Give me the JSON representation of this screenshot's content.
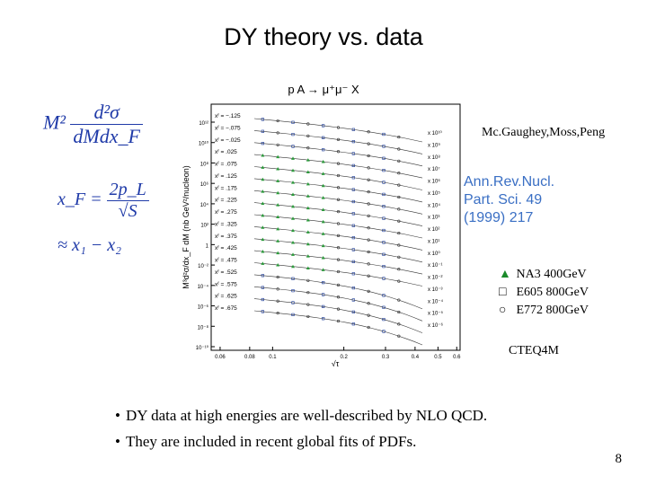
{
  "slide": {
    "title": "DY theory vs. data",
    "page_number": "8"
  },
  "equations": {
    "cross_section": {
      "prefix": "M²",
      "numerator": "d²σ",
      "denominator": "dMdx_F"
    },
    "xf": {
      "lhs": "x_F =",
      "numerator": "2p_L",
      "denominator": "√S"
    },
    "approx": "≈ x₁ − x₂"
  },
  "references": {
    "authors": "Mc.Gaughey,Moss,Peng",
    "journal_lines": [
      "Ann.Rev.Nucl.",
      "Part. Sci. 49",
      "(1999) 217"
    ]
  },
  "legend": {
    "entries": [
      {
        "symbol": "▲",
        "label": "NA3  400GeV",
        "color": "#1a8a2a"
      },
      {
        "symbol": "□",
        "label": "E605 800GeV",
        "color": "#000000"
      },
      {
        "symbol": "○",
        "label": "E772 800GeV",
        "color": "#000000"
      }
    ],
    "theory_label": "CTEQ4M"
  },
  "bullets": [
    "DY data at high energies are well-described by NLO QCD.",
    "They are included in recent global fits of PDFs."
  ],
  "chart_data": {
    "type": "scatter",
    "title": "p A → μ⁺μ⁻ X",
    "xlabel": "√τ",
    "ylabel": "M³d²σ/dx_F dM (nb GeV²/nucleon)",
    "x_ticks": [
      "0.06",
      "0.08",
      "0.1",
      "0.2",
      "0.3",
      "0.4",
      "0.5",
      "0.6"
    ],
    "y_ticks": [
      "10¹²",
      "10¹⁰",
      "10⁸",
      "10⁶",
      "10⁴",
      "10²",
      "1",
      "10⁻²",
      "10⁻⁴",
      "10⁻⁶",
      "10⁻⁸",
      "10⁻¹⁰"
    ],
    "series": [
      {
        "xf": "−.125",
        "scale": "x 10¹⁰"
      },
      {
        "xf": "−.075",
        "scale": "x 10⁹"
      },
      {
        "xf": "−.025",
        "scale": "x 10⁸"
      },
      {
        "xf": ".025",
        "scale": "x 10⁷"
      },
      {
        "xf": ".075",
        "scale": "x 10⁶"
      },
      {
        "xf": ".125",
        "scale": "x 10⁵"
      },
      {
        "xf": ".175",
        "scale": "x 10⁴"
      },
      {
        "xf": ".225",
        "scale": "x 10³"
      },
      {
        "xf": ".275",
        "scale": "x 10²"
      },
      {
        "xf": ".325",
        "scale": "x 10¹"
      },
      {
        "xf": ".375",
        "scale": "x 10⁰"
      },
      {
        "xf": ".425",
        "scale": "x 10⁻¹"
      },
      {
        "xf": ".475",
        "scale": "x 10⁻²"
      },
      {
        "xf": ".525",
        "scale": "x 10⁻³"
      },
      {
        "xf": ".575",
        "scale": "x 10⁻⁴"
      },
      {
        "xf": ".625",
        "scale": "x 10⁻⁵"
      },
      {
        "xf": ".675",
        "scale": "x 10⁻⁶"
      }
    ]
  }
}
